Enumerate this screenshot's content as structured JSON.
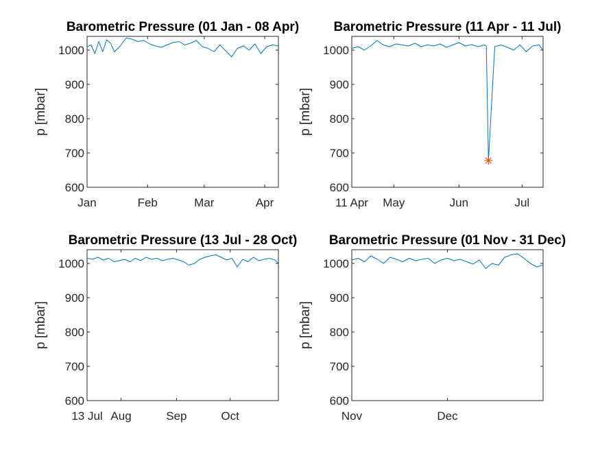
{
  "chart_data": [
    {
      "type": "line",
      "title": "Barometric Pressure (01 Jan - 08 Apr)",
      "xlabel": "",
      "ylabel": "p [mbar]",
      "xlim": [
        "2000-01-01",
        "2000-04-08"
      ],
      "ylim": [
        600,
        1040
      ],
      "yticks": [
        600,
        700,
        800,
        900,
        1000
      ],
      "xticks": [
        {
          "date": "2000-01-01",
          "label": "Jan"
        },
        {
          "date": "2000-02-01",
          "label": "Feb"
        },
        {
          "date": "2000-03-01",
          "label": "Mar"
        },
        {
          "date": "2000-04-01",
          "label": "Apr"
        }
      ],
      "series": [
        {
          "color": "#0072bd",
          "x": [
            "2000-01-01",
            "2000-01-03",
            "2000-01-05",
            "2000-01-07",
            "2000-01-09",
            "2000-01-11",
            "2000-01-13",
            "2000-01-15",
            "2000-01-18",
            "2000-01-21",
            "2000-01-24",
            "2000-01-27",
            "2000-01-30",
            "2000-02-02",
            "2000-02-05",
            "2000-02-08",
            "2000-02-11",
            "2000-02-14",
            "2000-02-17",
            "2000-02-20",
            "2000-02-23",
            "2000-02-26",
            "2000-02-29",
            "2000-03-03",
            "2000-03-06",
            "2000-03-09",
            "2000-03-12",
            "2000-03-15",
            "2000-03-18",
            "2000-03-21",
            "2000-03-24",
            "2000-03-27",
            "2000-03-30",
            "2000-04-02",
            "2000-04-05",
            "2000-04-08"
          ],
          "y": [
            1010,
            1015,
            990,
            1025,
            995,
            1030,
            1020,
            995,
            1012,
            1035,
            1032,
            1025,
            1028,
            1018,
            1012,
            1008,
            1015,
            1022,
            1025,
            1015,
            1020,
            1028,
            1010,
            1005,
            995,
            1015,
            998,
            980,
            1005,
            1012,
            1000,
            1018,
            990,
            1010,
            1015,
            1012
          ]
        }
      ]
    },
    {
      "type": "line",
      "title": "Barometric Pressure (11 Apr - 11 Jul)",
      "xlabel": "",
      "ylabel": "p [mbar]",
      "xlim": [
        "2000-04-11",
        "2000-07-11"
      ],
      "ylim": [
        600,
        1040
      ],
      "yticks": [
        600,
        700,
        800,
        900,
        1000
      ],
      "xticks": [
        {
          "date": "2000-04-11",
          "label": "11 Apr"
        },
        {
          "date": "2000-05-01",
          "label": "May"
        },
        {
          "date": "2000-06-01",
          "label": "Jun"
        },
        {
          "date": "2000-07-01",
          "label": "Jul"
        }
      ],
      "series": [
        {
          "color": "#0072bd",
          "x": [
            "2000-04-11",
            "2000-04-14",
            "2000-04-17",
            "2000-04-20",
            "2000-04-23",
            "2000-04-26",
            "2000-04-29",
            "2000-05-02",
            "2000-05-05",
            "2000-05-08",
            "2000-05-11",
            "2000-05-14",
            "2000-05-17",
            "2000-05-20",
            "2000-05-23",
            "2000-05-26",
            "2000-05-29",
            "2000-06-01",
            "2000-06-04",
            "2000-06-07",
            "2000-06-10",
            "2000-06-13",
            "2000-06-14",
            "2000-06-15",
            "2000-06-18",
            "2000-06-21",
            "2000-06-24",
            "2000-06-27",
            "2000-06-30",
            "2000-07-03",
            "2000-07-06",
            "2000-07-09",
            "2000-07-11"
          ],
          "y": [
            1005,
            1010,
            1000,
            1012,
            1028,
            1015,
            1010,
            1018,
            1015,
            1012,
            1020,
            1010,
            1015,
            1012,
            1018,
            1008,
            1015,
            1022,
            1012,
            1016,
            1010,
            1015,
            1012,
            678,
            1010,
            1015,
            1008,
            1000,
            1015,
            995,
            1012,
            1015,
            1000
          ]
        },
        {
          "name": "",
          "color": "#d95319",
          "marker": "asterisk",
          "x": [
            "2000-06-15"
          ],
          "y": [
            678
          ]
        }
      ]
    },
    {
      "type": "line",
      "title": "Barometric Pressure (13 Jul - 28 Oct)",
      "xlabel": "",
      "ylabel": "p [mbar]",
      "xlim": [
        "2000-07-13",
        "2000-10-28"
      ],
      "ylim": [
        600,
        1040
      ],
      "yticks": [
        600,
        700,
        800,
        900,
        1000
      ],
      "xticks": [
        {
          "date": "2000-07-13",
          "label": "13 Jul"
        },
        {
          "date": "2000-08-01",
          "label": "Aug"
        },
        {
          "date": "2000-09-01",
          "label": "Sep"
        },
        {
          "date": "2000-10-01",
          "label": "Oct"
        }
      ],
      "series": [
        {
          "color": "#0072bd",
          "x": [
            "2000-07-13",
            "2000-07-16",
            "2000-07-19",
            "2000-07-22",
            "2000-07-25",
            "2000-07-28",
            "2000-07-31",
            "2000-08-03",
            "2000-08-06",
            "2000-08-09",
            "2000-08-12",
            "2000-08-15",
            "2000-08-18",
            "2000-08-21",
            "2000-08-24",
            "2000-08-27",
            "2000-08-30",
            "2000-09-02",
            "2000-09-05",
            "2000-09-08",
            "2000-09-11",
            "2000-09-14",
            "2000-09-17",
            "2000-09-20",
            "2000-09-23",
            "2000-09-26",
            "2000-09-29",
            "2000-10-02",
            "2000-10-05",
            "2000-10-08",
            "2000-10-11",
            "2000-10-14",
            "2000-10-17",
            "2000-10-20",
            "2000-10-23",
            "2000-10-26",
            "2000-10-28"
          ],
          "y": [
            1015,
            1012,
            1018,
            1010,
            1015,
            1005,
            1008,
            1012,
            1005,
            1015,
            1008,
            1018,
            1012,
            1015,
            1008,
            1012,
            1015,
            1010,
            1005,
            995,
            1000,
            1012,
            1018,
            1022,
            1025,
            1018,
            1010,
            1015,
            990,
            1012,
            1005,
            1018,
            1008,
            1012,
            1015,
            1010,
            1000
          ]
        }
      ]
    },
    {
      "type": "line",
      "title": "Barometric Pressure (01 Nov - 31 Dec)",
      "xlabel": "",
      "ylabel": "p [mbar]",
      "xlim": [
        "2000-11-01",
        "2000-12-31"
      ],
      "ylim": [
        600,
        1040
      ],
      "yticks": [
        600,
        700,
        800,
        900,
        1000
      ],
      "xticks": [
        {
          "date": "2000-11-01",
          "label": "Nov"
        },
        {
          "date": "2000-12-01",
          "label": "Dec"
        }
      ],
      "series": [
        {
          "color": "#0072bd",
          "x": [
            "2000-11-01",
            "2000-11-03",
            "2000-11-05",
            "2000-11-07",
            "2000-11-09",
            "2000-11-11",
            "2000-11-13",
            "2000-11-15",
            "2000-11-17",
            "2000-11-19",
            "2000-11-21",
            "2000-11-23",
            "2000-11-25",
            "2000-11-27",
            "2000-11-29",
            "2000-12-01",
            "2000-12-03",
            "2000-12-05",
            "2000-12-07",
            "2000-12-09",
            "2000-12-11",
            "2000-12-13",
            "2000-12-15",
            "2000-12-17",
            "2000-12-19",
            "2000-12-21",
            "2000-12-23",
            "2000-12-25",
            "2000-12-27",
            "2000-12-29",
            "2000-12-31"
          ],
          "y": [
            1010,
            1015,
            1005,
            1022,
            1012,
            1000,
            1018,
            1012,
            1005,
            1015,
            1008,
            1012,
            1015,
            1000,
            1010,
            1015,
            1008,
            1012,
            1005,
            998,
            1010,
            985,
            1000,
            995,
            1018,
            1025,
            1028,
            1015,
            1000,
            990,
            995
          ]
        }
      ]
    }
  ]
}
